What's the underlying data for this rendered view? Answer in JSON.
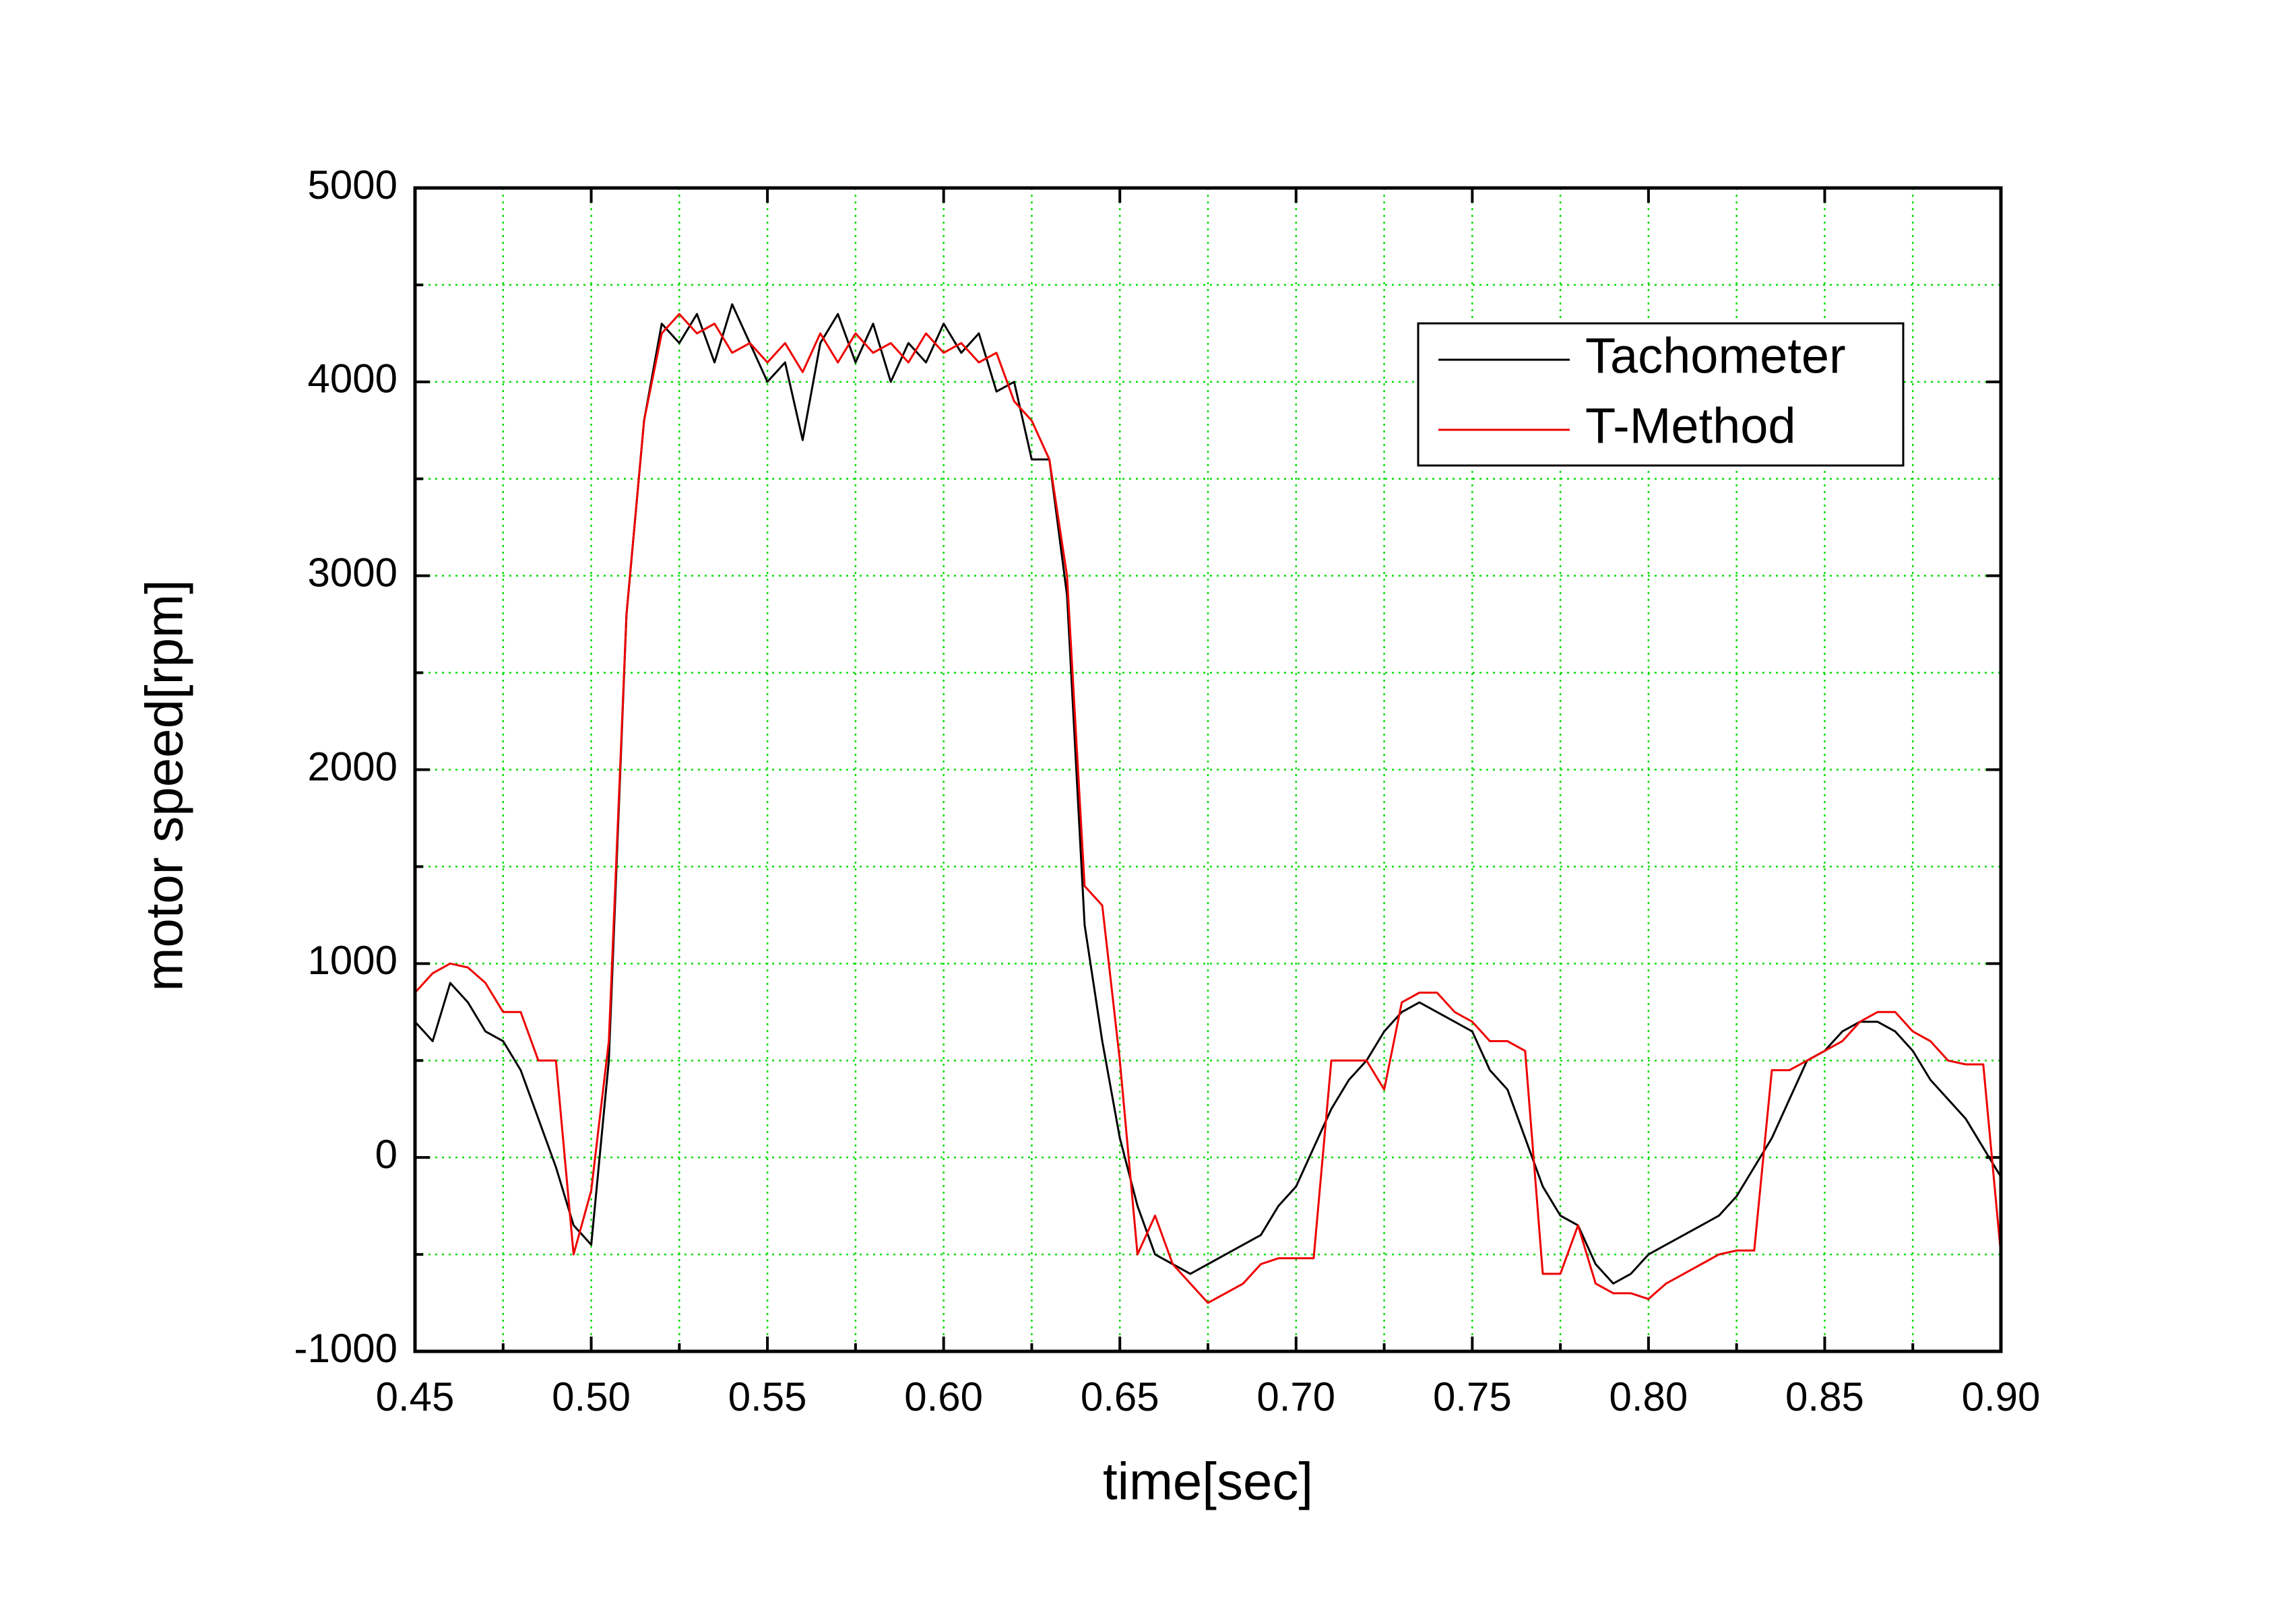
{
  "chart_data": {
    "type": "line",
    "xlabel": "time[sec]",
    "ylabel": "motor speed[rpm]",
    "xlim": [
      0.45,
      0.9
    ],
    "ylim": [
      -1000,
      5000
    ],
    "xticks": [
      0.45,
      {
        "value": 0.5,
        "label": "0.50"
      },
      0.55,
      {
        "value": 0.6,
        "label": "0.60"
      },
      0.65,
      {
        "value": 0.7,
        "label": "0.70"
      },
      0.75,
      {
        "value": 0.8,
        "label": "0.80"
      },
      0.85,
      {
        "value": 0.9,
        "label": "0.90"
      }
    ],
    "yticks": [
      -1000,
      0,
      1000,
      2000,
      3000,
      4000,
      5000
    ],
    "minor_xticks": [
      0.475,
      0.525,
      0.575,
      0.625,
      0.675,
      0.725,
      0.775,
      0.825,
      0.875
    ],
    "minor_yticks": [
      -500,
      500,
      1500,
      2500,
      3500,
      4500
    ],
    "grid": true,
    "grid_color": "#00dd00",
    "legend": "upper right",
    "x": [
      0.45,
      0.455,
      0.46,
      0.465,
      0.47,
      0.475,
      0.48,
      0.485,
      0.49,
      0.495,
      0.5,
      0.505,
      0.51,
      0.515,
      0.52,
      0.525,
      0.53,
      0.535,
      0.54,
      0.545,
      0.55,
      0.555,
      0.56,
      0.565,
      0.57,
      0.575,
      0.58,
      0.585,
      0.59,
      0.595,
      0.6,
      0.605,
      0.61,
      0.615,
      0.62,
      0.625,
      0.63,
      0.635,
      0.64,
      0.645,
      0.65,
      0.655,
      0.66,
      0.665,
      0.67,
      0.675,
      0.68,
      0.685,
      0.69,
      0.695,
      0.7,
      0.705,
      0.71,
      0.715,
      0.72,
      0.725,
      0.73,
      0.735,
      0.74,
      0.745,
      0.75,
      0.755,
      0.76,
      0.765,
      0.77,
      0.775,
      0.78,
      0.785,
      0.79,
      0.795,
      0.8,
      0.805,
      0.81,
      0.815,
      0.82,
      0.825,
      0.83,
      0.835,
      0.84,
      0.845,
      0.85,
      0.855,
      0.86,
      0.865,
      0.87,
      0.875,
      0.88,
      0.885,
      0.89,
      0.895,
      0.9
    ],
    "series": [
      {
        "name": "Tachometer",
        "color": "#000000",
        "values": [
          700,
          600,
          900,
          800,
          650,
          600,
          450,
          200,
          -50,
          -350,
          -450,
          500,
          2800,
          3800,
          4300,
          4200,
          4350,
          4100,
          4400,
          4200,
          4000,
          4100,
          3700,
          4200,
          4350,
          4100,
          4300,
          4000,
          4200,
          4100,
          4300,
          4150,
          4250,
          3950,
          4000,
          3600,
          3600,
          2900,
          1200,
          600,
          100,
          -250,
          -500,
          -550,
          -600,
          -550,
          -500,
          -450,
          -400,
          -250,
          -150,
          50,
          250,
          400,
          500,
          650,
          750,
          800,
          750,
          700,
          650,
          450,
          350,
          100,
          -150,
          -300,
          -350,
          -550,
          -650,
          -600,
          -500,
          -450,
          -400,
          -350,
          -300,
          -200,
          -50,
          100,
          300,
          500,
          550,
          650,
          700,
          700,
          650,
          550,
          400,
          300,
          200,
          50,
          -100
        ]
      },
      {
        "name": "T-Method",
        "color": "#ee0000",
        "values": [
          850,
          950,
          1000,
          980,
          900,
          750,
          750,
          500,
          500,
          -500,
          -170,
          600,
          2800,
          3800,
          4250,
          4350,
          4250,
          4300,
          4150,
          4200,
          4100,
          4200,
          4050,
          4250,
          4100,
          4250,
          4150,
          4200,
          4100,
          4250,
          4150,
          4200,
          4100,
          4150,
          3900,
          3800,
          3600,
          3000,
          1400,
          1300,
          500,
          -500,
          -300,
          -550,
          -650,
          -750,
          -700,
          -650,
          -550,
          -520,
          -520,
          -520,
          500,
          500,
          500,
          350,
          800,
          850,
          850,
          750,
          700,
          600,
          600,
          550,
          -600,
          -600,
          -350,
          -650,
          -700,
          -700,
          -730,
          -650,
          -600,
          -550,
          -500,
          -480,
          -480,
          450,
          450,
          500,
          550,
          600,
          700,
          750,
          750,
          650,
          600,
          500,
          480,
          480,
          -500
        ]
      }
    ]
  }
}
